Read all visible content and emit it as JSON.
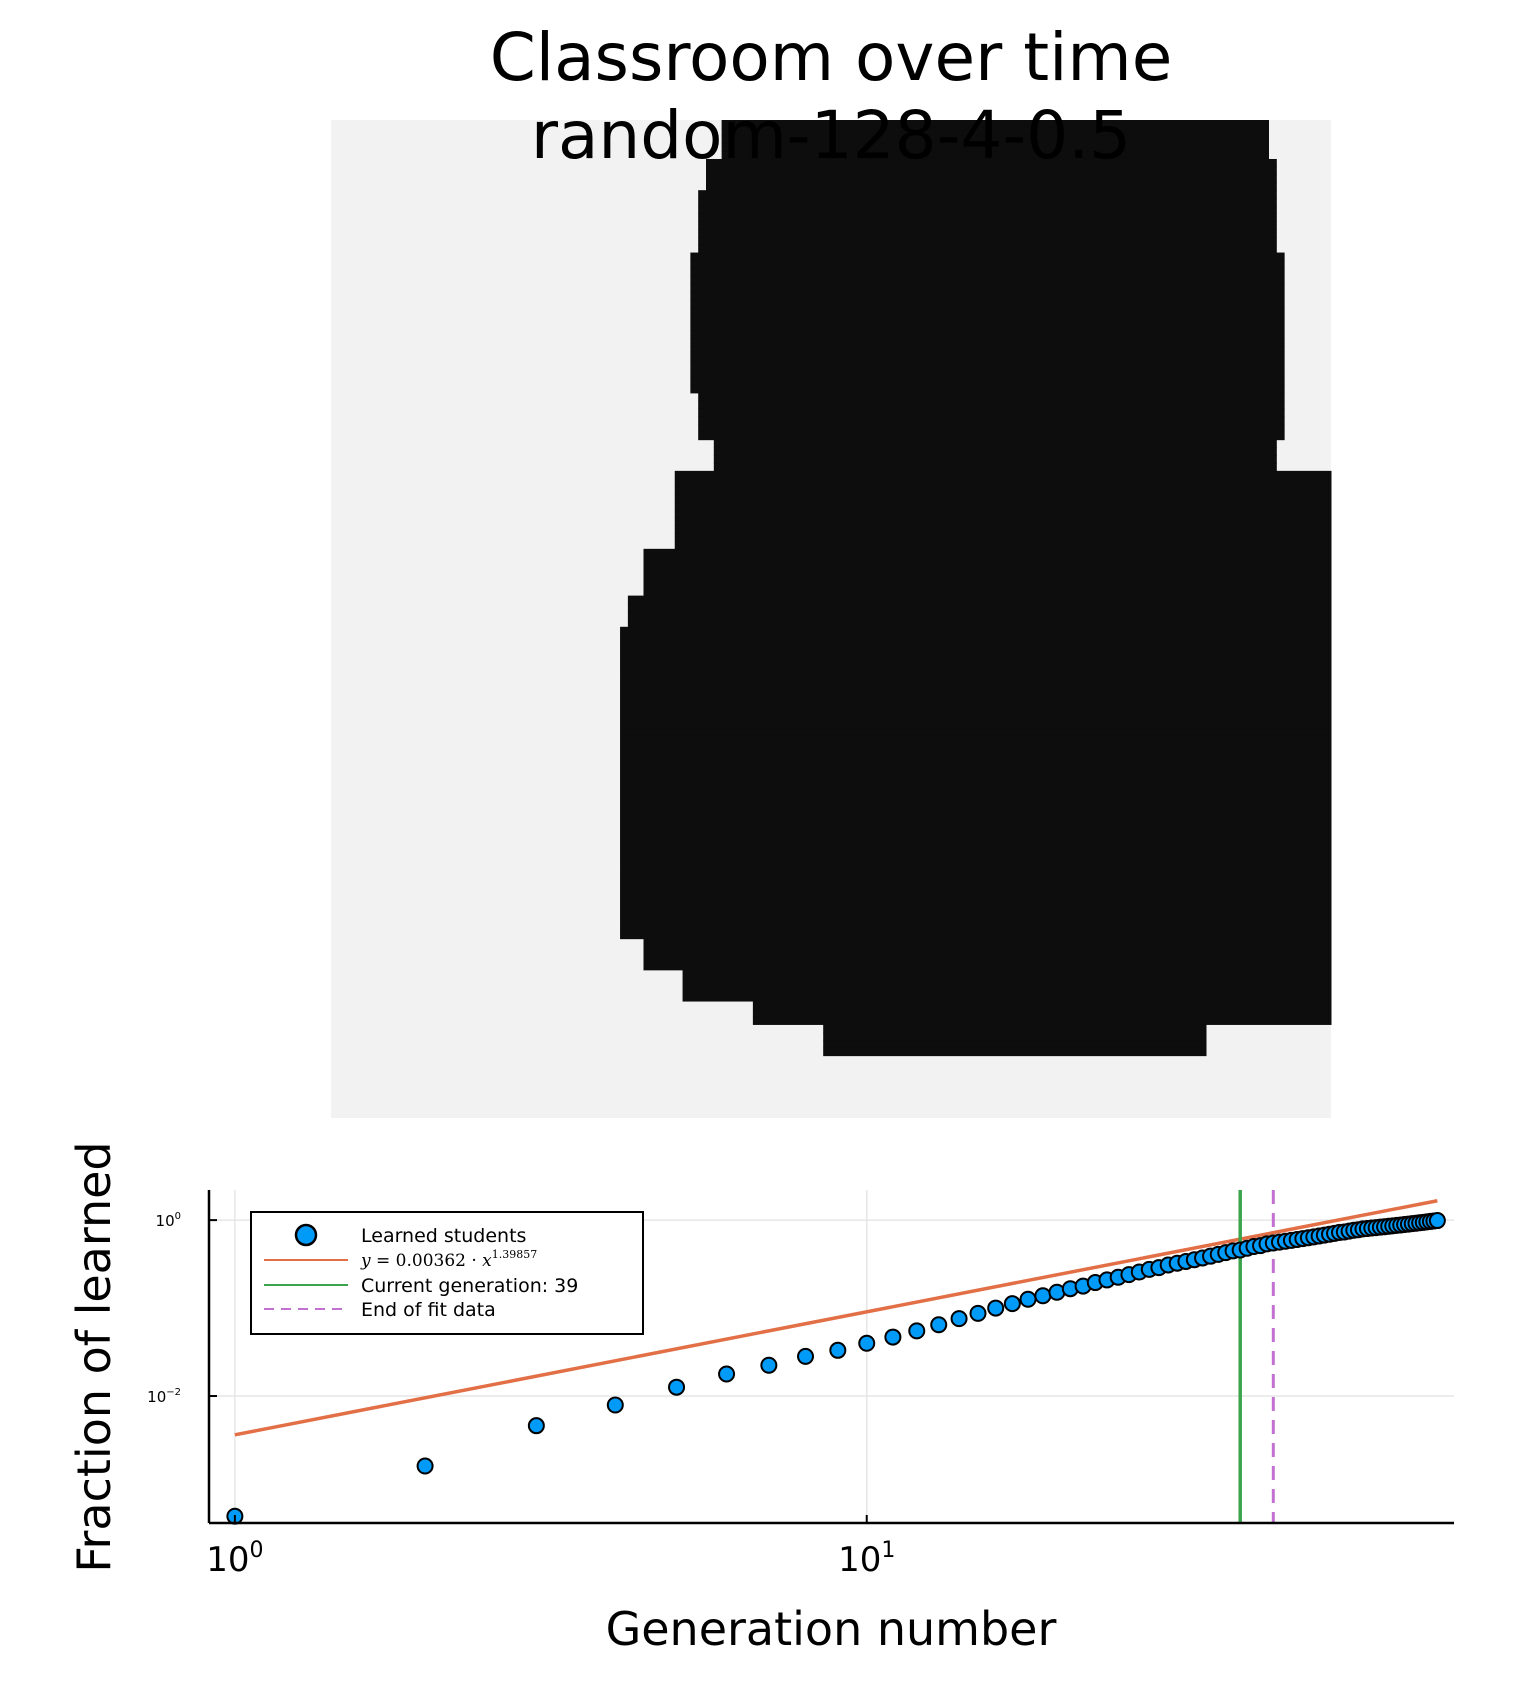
{
  "figure": {
    "title_line1": "Classroom over time",
    "title_line2": "random-128-4-0.5"
  },
  "heatmap": {
    "grid_size": 128,
    "colors": {
      "learned": "#0d0d0d",
      "not_learned": "#f2f2f2"
    },
    "learned_region_by_row": [
      {
        "rows": [
          0,
          4
        ],
        "from": 50,
        "to": 119
      },
      {
        "rows": [
          5,
          8
        ],
        "from": 48,
        "to": 120
      },
      {
        "rows": [
          9,
          16
        ],
        "from": 47,
        "to": 120
      },
      {
        "rows": [
          17,
          34
        ],
        "from": 46,
        "to": 121
      },
      {
        "rows": [
          35,
          40
        ],
        "from": 47,
        "to": 121
      },
      {
        "rows": [
          41,
          44
        ],
        "from": 49,
        "to": 120
      },
      {
        "rows": [
          45,
          54
        ],
        "from": 44,
        "to": 127
      },
      {
        "rows": [
          55,
          60
        ],
        "from": 40,
        "to": 127
      },
      {
        "rows": [
          61,
          64
        ],
        "from": 38,
        "to": 127
      },
      {
        "rows": [
          65,
          70
        ],
        "from": 37,
        "to": 127
      },
      {
        "rows": [
          71,
          104
        ],
        "from": 37,
        "to": 127
      },
      {
        "rows": [
          105,
          108
        ],
        "from": 40,
        "to": 127
      },
      {
        "rows": [
          109,
          112
        ],
        "from": 45,
        "to": 127
      },
      {
        "rows": [
          113,
          115
        ],
        "from": 54,
        "to": 127
      },
      {
        "rows": [
          116,
          119
        ],
        "from": 63,
        "to": 111
      }
    ]
  },
  "chart_data": {
    "type": "scatter",
    "title": "",
    "xlabel": "Generation number",
    "ylabel": "Fraction of learned",
    "xscale": "log10",
    "yscale": "log10",
    "xlim": [
      0.91,
      85
    ],
    "ylim": [
      0.00036,
      2.2
    ],
    "x_ticks": [
      {
        "value": 1,
        "label_base": "10",
        "label_exp": "0"
      },
      {
        "value": 10,
        "label_base": "10",
        "label_exp": "1"
      }
    ],
    "y_ticks": [
      {
        "value": 1,
        "label_base": "10",
        "label_exp": "0"
      },
      {
        "value": 0.01,
        "label_base": "10",
        "label_exp": "−2"
      }
    ],
    "grid": true,
    "legend_position": "top-left",
    "series": [
      {
        "name": "Learned students",
        "kind": "scatter",
        "color": "#009af9",
        "x": [
          1,
          2,
          3,
          4,
          5,
          6,
          7,
          8,
          9,
          10,
          11,
          12,
          13,
          14,
          15,
          16,
          17,
          18,
          19,
          20,
          21,
          22,
          23,
          24,
          25,
          26,
          27,
          28,
          29,
          30,
          31,
          32,
          33,
          34,
          35,
          36,
          37,
          38,
          39,
          40,
          41,
          42,
          43,
          44,
          45,
          46,
          47,
          48,
          49,
          50,
          51,
          52,
          53,
          54,
          55,
          56,
          57,
          58,
          59,
          60,
          61,
          62,
          63,
          64,
          65,
          66,
          67,
          68,
          69,
          70,
          71,
          72,
          73,
          74,
          75,
          76,
          77,
          78,
          79,
          80
        ],
        "y": [
          0.00043,
          0.0016,
          0.0046,
          0.0079,
          0.0126,
          0.0178,
          0.0224,
          0.0282,
          0.0331,
          0.0398,
          0.0468,
          0.055,
          0.0646,
          0.0759,
          0.0871,
          0.1,
          0.1122,
          0.1259,
          0.138,
          0.1514,
          0.166,
          0.1778,
          0.195,
          0.2089,
          0.2239,
          0.2399,
          0.257,
          0.2754,
          0.2884,
          0.309,
          0.3236,
          0.3388,
          0.3548,
          0.3715,
          0.389,
          0.4074,
          0.4266,
          0.4467,
          0.4571,
          0.4786,
          0.5012,
          0.5129,
          0.537,
          0.5495,
          0.5623,
          0.5754,
          0.5888,
          0.6026,
          0.6166,
          0.631,
          0.6457,
          0.6607,
          0.6761,
          0.6918,
          0.7079,
          0.7244,
          0.7328,
          0.7499,
          0.7674,
          0.7762,
          0.7943,
          0.8035,
          0.8128,
          0.8222,
          0.8318,
          0.8414,
          0.8511,
          0.861,
          0.871,
          0.881,
          0.8913,
          0.9016,
          0.912,
          0.9226,
          0.9333,
          0.9441,
          0.955,
          0.9661,
          0.9772,
          0.9886
        ]
      },
      {
        "name": "y = 0.00362 · x^1.39857",
        "name_parts": {
          "lhs": "y",
          "eq": " = 0.00362 · ",
          "base": "x",
          "exp": "1.39857"
        },
        "kind": "fit-line",
        "color": "#e26f46",
        "coefficient": 0.00362,
        "exponent": 1.39857,
        "x_range": [
          1,
          80
        ]
      },
      {
        "name": "Current generation: 39",
        "kind": "vertical-line",
        "color": "#3da44d",
        "x": 39
      },
      {
        "name": "End of fit data",
        "kind": "vertical-dashed-line",
        "color": "#c271d2",
        "x": 44
      }
    ]
  }
}
